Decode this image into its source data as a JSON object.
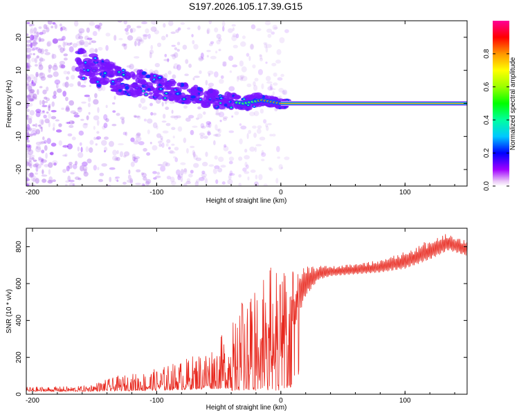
{
  "figure_title": "S197.2026.105.17.39.G15",
  "chart_data": [
    {
      "type": "heatmap",
      "title": "S197.2026.105.17.39.G15",
      "xlabel": "Height of straight line (km)",
      "ylabel": "Frequency (Hz)",
      "xlim": [
        -205,
        150
      ],
      "ylim": [
        -25,
        25
      ],
      "xticks": [
        -200,
        -100,
        0,
        100
      ],
      "yticks": [
        -20,
        -10,
        0,
        10,
        20
      ],
      "colorbar": {
        "label": "Normalized spectral amplitude",
        "range": [
          0,
          1
        ],
        "ticks": [
          "0.0",
          "0.2",
          "0.4",
          "0.6",
          "0.8"
        ]
      },
      "ridge": {
        "description": "frequency ridge converging to 0 Hz near height 0 km; constant 0 Hz above 0 km",
        "points": [
          {
            "height": -160,
            "frequency": 12
          },
          {
            "height": -130,
            "frequency": 7
          },
          {
            "height": -100,
            "frequency": 5
          },
          {
            "height": -75,
            "frequency": 3
          },
          {
            "height": -50,
            "frequency": 1
          },
          {
            "height": -30,
            "frequency": 0
          },
          {
            "height": -15,
            "frequency": 1
          },
          {
            "height": 0,
            "frequency": 0
          },
          {
            "height": 150,
            "frequency": 0
          }
        ]
      }
    },
    {
      "type": "line",
      "xlabel": "Height of straight line (km)",
      "ylabel": "SNR (10 * v/v)",
      "xlim": [
        -205,
        150
      ],
      "ylim": [
        0,
        900
      ],
      "xticks": [
        -200,
        -100,
        0,
        100
      ],
      "yticks": [
        0,
        200,
        400,
        600,
        800
      ],
      "series_color": "#e8281e",
      "envelope": {
        "heights": [
          -205,
          -160,
          -130,
          -100,
          -75,
          -50,
          -35,
          -20,
          -10,
          0,
          10,
          20,
          30,
          40,
          60,
          80,
          100,
          120,
          135,
          150
        ],
        "snr_base": [
          15,
          15,
          18,
          20,
          25,
          30,
          30,
          60,
          100,
          150,
          350,
          530,
          620,
          640,
          650,
          660,
          680,
          730,
          780,
          750
        ],
        "snr_peak": [
          40,
          45,
          100,
          140,
          200,
          300,
          450,
          650,
          700,
          650,
          680,
          700,
          700,
          700,
          710,
          730,
          780,
          840,
          880,
          830
        ]
      }
    }
  ]
}
